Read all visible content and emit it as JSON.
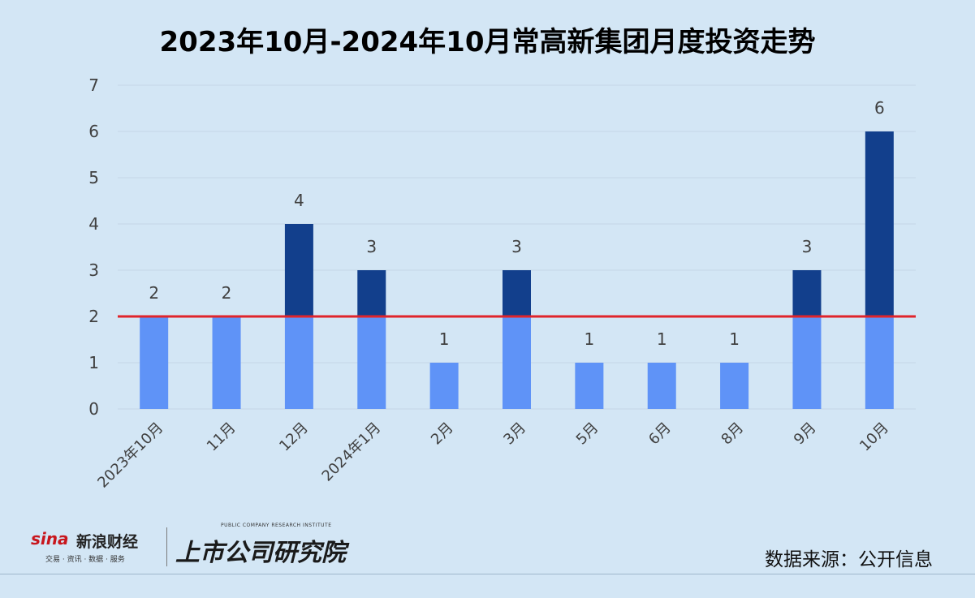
{
  "chart_data": {
    "type": "bar",
    "title": "2023年10月-2024年10月常高新集团月度投资走势",
    "categories": [
      "2023年10月",
      "11月",
      "12月",
      "2024年1月",
      "2月",
      "3月",
      "5月",
      "6月",
      "8月",
      "9月",
      "10月"
    ],
    "values": [
      2,
      2,
      4,
      3,
      1,
      3,
      1,
      1,
      1,
      3,
      6
    ],
    "reference_line": 2,
    "ylim": [
      0,
      7
    ],
    "yticks": [
      0,
      1,
      2,
      3,
      4,
      5,
      6,
      7
    ],
    "xlabel": "",
    "ylabel": "",
    "grid": true,
    "colors": {
      "below_line": "#5f93f7",
      "above_line": "#123f8c",
      "reference_line": "#e0242b",
      "gridline": "#c4d6e6"
    }
  },
  "source": "数据来源：公开信息",
  "logos": {
    "sina_mark": "sina",
    "sina_name": "新浪财经",
    "sina_tagline": "交易 · 资讯 · 数据 · 服务",
    "institute_tagline": "PUBLIC COMPANY RESEARCH INSTITUTE",
    "institute_name": "上市公司研究院"
  }
}
